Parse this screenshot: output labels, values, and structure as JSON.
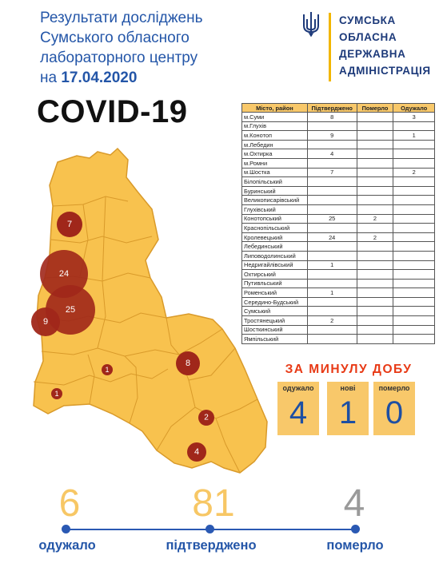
{
  "header": {
    "title_line1": "Результати досліджень",
    "title_line2": "Сумського обласного",
    "title_line3": "лабораторного центру",
    "title_prefix": "на ",
    "date": "17.04.2020",
    "disease": "COVID-19"
  },
  "gov": {
    "line1": "СУМСЬКА",
    "line2": "ОБЛАСНА",
    "line3": "ДЕРЖАВНА",
    "line4": "АДМІНІСТРАЦІЯ",
    "emblem": "trident-icon",
    "accent": "#f2b600"
  },
  "table": {
    "headers": [
      "Місто, район",
      "Підтверджено",
      "Померло",
      "Одужало"
    ],
    "rows": [
      [
        "м.Суми",
        "8",
        "",
        "3"
      ],
      [
        "м.Глухів",
        "",
        "",
        ""
      ],
      [
        "м.Конотоп",
        "9",
        "",
        "1"
      ],
      [
        "м.Лебедин",
        "",
        "",
        ""
      ],
      [
        "м.Охтирка",
        "4",
        "",
        ""
      ],
      [
        "м.Ромни",
        "",
        "",
        ""
      ],
      [
        "м.Шостка",
        "7",
        "",
        "2"
      ],
      [
        "Білопільський",
        "",
        "",
        ""
      ],
      [
        "Буринський",
        "",
        "",
        ""
      ],
      [
        "Великописарівський",
        "",
        "",
        ""
      ],
      [
        "Глухівський",
        "",
        "",
        ""
      ],
      [
        "Конотопський",
        "25",
        "2",
        ""
      ],
      [
        "Краснопільський",
        "",
        "",
        ""
      ],
      [
        "Кролевецький",
        "24",
        "2",
        ""
      ],
      [
        "Лебединський",
        "",
        "",
        ""
      ],
      [
        "Липоводолинський",
        "",
        "",
        ""
      ],
      [
        "Недригайлівський",
        "1",
        "",
        ""
      ],
      [
        "Охтирський",
        "",
        "",
        ""
      ],
      [
        "Путивльський",
        "",
        "",
        ""
      ],
      [
        "Роменський",
        "1",
        "",
        ""
      ],
      [
        "Середино-Будський",
        "",
        "",
        ""
      ],
      [
        "Сумський",
        "",
        "",
        ""
      ],
      [
        "Тростянецький",
        "2",
        "",
        ""
      ],
      [
        "Шосткинський",
        "",
        "",
        ""
      ],
      [
        "Ямпільський",
        "",
        "",
        ""
      ]
    ]
  },
  "last_day": {
    "title": "ЗА МИНУЛУ ДОБУ",
    "boxes": [
      {
        "label": "одужало",
        "value": "4"
      },
      {
        "label": "нові",
        "value": "1"
      },
      {
        "label": "померло",
        "value": "0"
      }
    ]
  },
  "totals": [
    {
      "value": "6",
      "label": "одужало",
      "color": "#f7c765"
    },
    {
      "value": "81",
      "label": "підтверджено",
      "color": "#f7c765"
    },
    {
      "value": "4",
      "label": "померло",
      "color": "#9a9a9a"
    }
  ],
  "map": {
    "fill": "#f8c24e",
    "border": "#d99a2a",
    "bubble_color": "#a0271a",
    "bubbles": [
      "7",
      "24",
      "25",
      "9",
      "1",
      "1",
      "8",
      "2",
      "4"
    ]
  }
}
